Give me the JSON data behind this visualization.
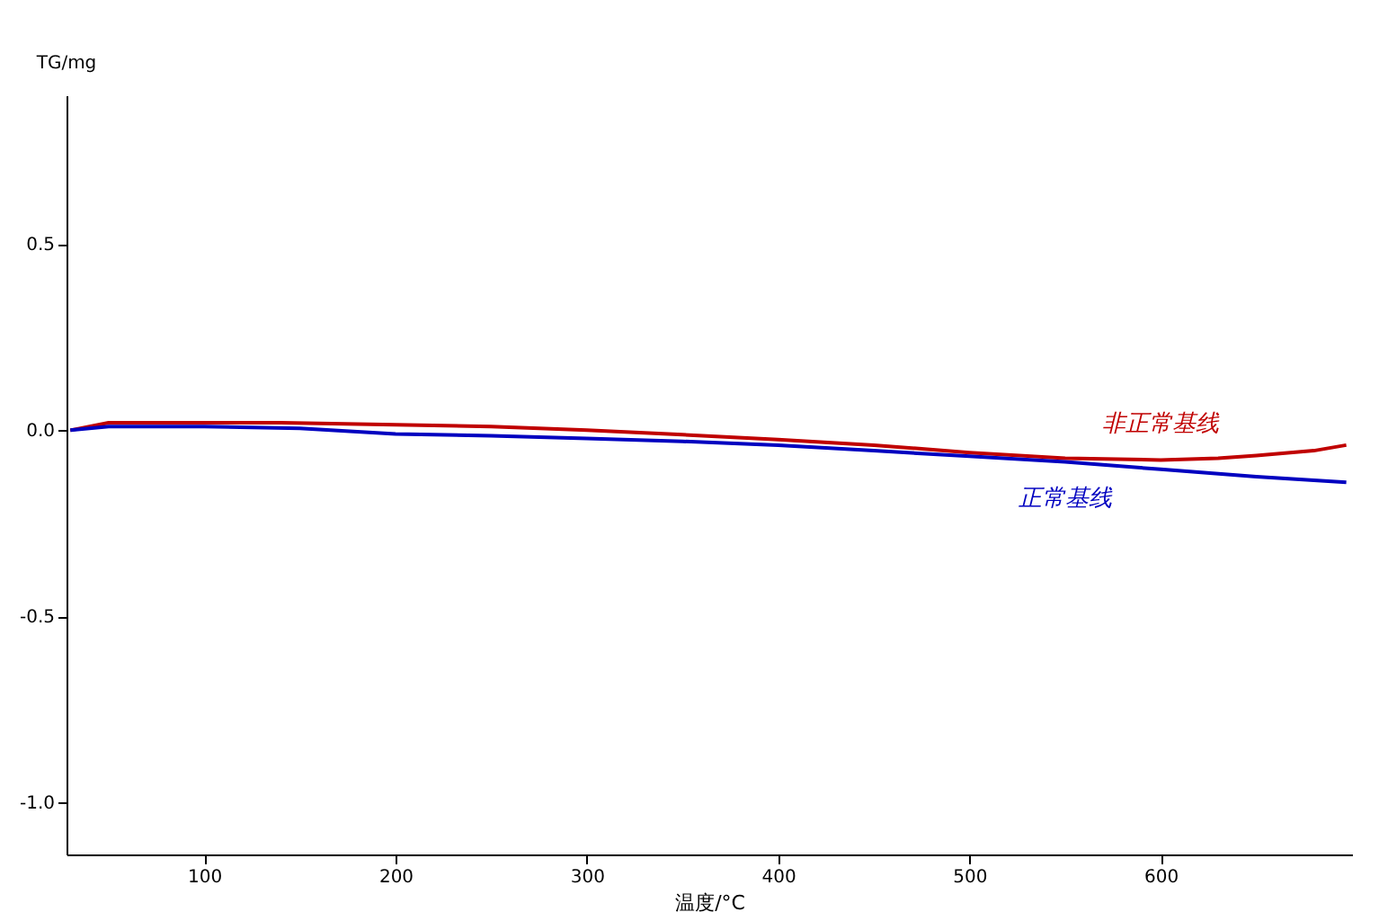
{
  "chart_data": {
    "type": "line",
    "xlabel": "温度/°C",
    "ylabel": "TG/mg",
    "xlim": [
      28,
      700
    ],
    "xticks": [
      100,
      200,
      300,
      400,
      500,
      600
    ],
    "ylim": [
      -1.14,
      0.9
    ],
    "yticks": [
      {
        "value": -1.0,
        "label": "-1.0"
      },
      {
        "value": -0.5,
        "label": "-0.5"
      },
      {
        "value": 0.0,
        "label": "0.0"
      },
      {
        "value": 0.5,
        "label": "0.5"
      }
    ],
    "grid": false,
    "marker": "none",
    "line_style": "solid",
    "series": [
      {
        "name": "非正常基线",
        "color": "#c00000",
        "x": [
          30,
          40,
          50,
          100,
          140,
          200,
          250,
          300,
          350,
          400,
          450,
          500,
          550,
          600,
          630,
          650,
          680,
          697
        ],
        "values": [
          0.0,
          0.01,
          0.02,
          0.02,
          0.02,
          0.015,
          0.01,
          0.0,
          -0.012,
          -0.025,
          -0.04,
          -0.06,
          -0.075,
          -0.08,
          -0.075,
          -0.068,
          -0.055,
          -0.04
        ]
      },
      {
        "name": "正常基线",
        "color": "#0000c0",
        "x": [
          30,
          40,
          50,
          100,
          150,
          200,
          250,
          300,
          350,
          400,
          450,
          500,
          550,
          600,
          650,
          697
        ],
        "values": [
          0.0,
          0.005,
          0.01,
          0.01,
          0.005,
          -0.01,
          -0.015,
          -0.022,
          -0.03,
          -0.04,
          -0.055,
          -0.07,
          -0.085,
          -0.105,
          -0.125,
          -0.14
        ]
      }
    ]
  }
}
